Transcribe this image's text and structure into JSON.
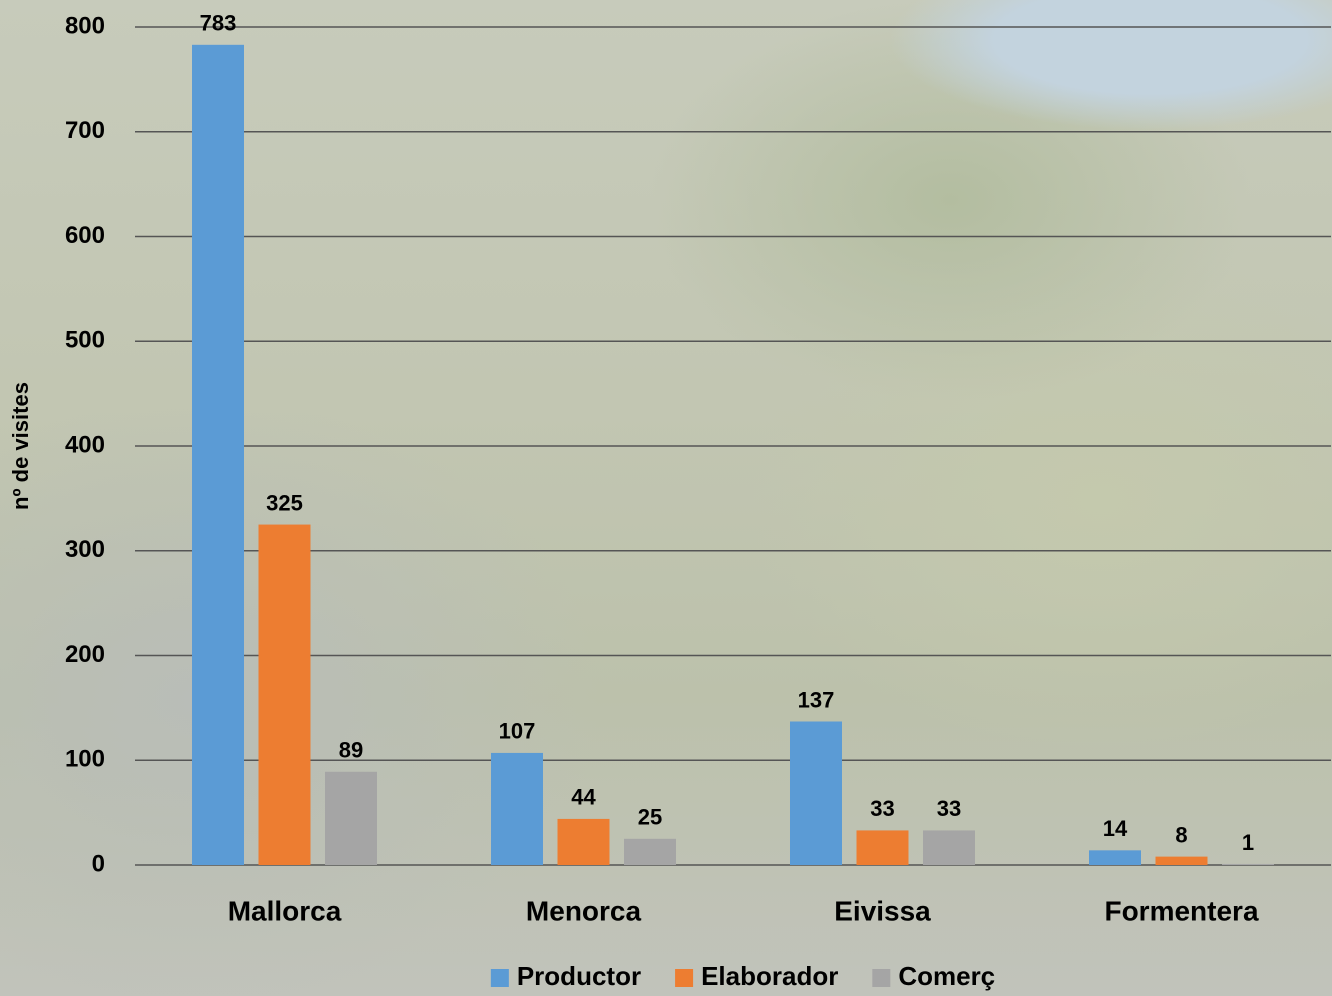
{
  "chart_data": {
    "type": "bar",
    "categories": [
      "Mallorca",
      "Menorca",
      "Eivissa",
      "Formentera"
    ],
    "series": [
      {
        "name": "Productor",
        "color": "#5b9bd5",
        "values": [
          783,
          107,
          137,
          14
        ]
      },
      {
        "name": "Elaborador",
        "color": "#ed7d31",
        "values": [
          325,
          44,
          33,
          8
        ]
      },
      {
        "name": "Comerç",
        "color": "#a5a5a5",
        "values": [
          89,
          25,
          33,
          1
        ]
      }
    ],
    "y_label": "nº de visites",
    "ylim": [
      0,
      800
    ],
    "yticks": [
      0,
      100,
      200,
      300,
      400,
      500,
      600,
      700,
      800
    ],
    "grid": true,
    "legend": "bottom"
  }
}
